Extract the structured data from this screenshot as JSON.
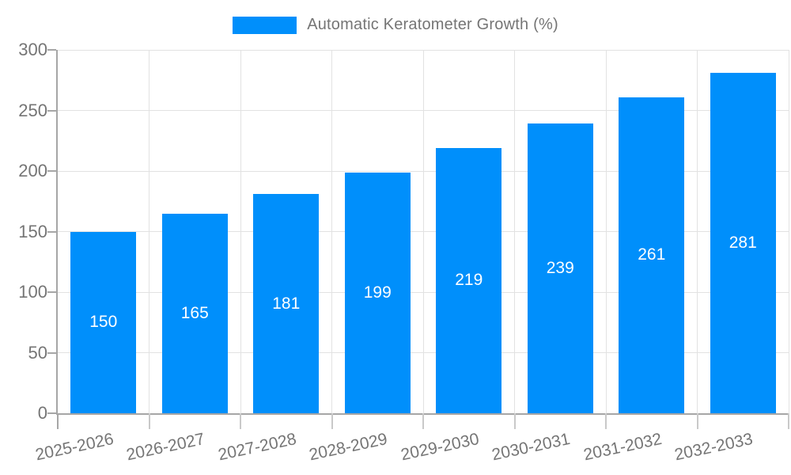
{
  "legend": {
    "label": "Automatic Keratometer Growth (%)"
  },
  "chart_data": {
    "type": "bar",
    "title": "Automatic Keratometer Growth (%)",
    "series_name": "Automatic Keratometer Growth (%)",
    "categories": [
      "2025-2026",
      "2026-2027",
      "2027-2028",
      "2028-2029",
      "2029-2030",
      "2030-2031",
      "2031-2032",
      "2032-2033"
    ],
    "values": [
      150,
      165,
      181,
      199,
      219,
      239,
      261,
      281
    ],
    "value_labels": [
      "150",
      "165",
      "181",
      "199",
      "219",
      "239",
      "261",
      "281"
    ],
    "xlabel": "",
    "ylabel": "",
    "ylim": [
      0,
      300
    ],
    "yticks": [
      0,
      50,
      100,
      150,
      200,
      250,
      300
    ],
    "grid": true,
    "legend_position": "top",
    "colors": {
      "bar": "#008FFB",
      "value_label": "#ffffff",
      "axis_label": "#757575",
      "legend_label": "#757575",
      "axis_line": "#a6a6a6",
      "gridline": "#e2e2e2",
      "tick_mark": "#c9c9c9",
      "background": "#ffffff"
    }
  }
}
